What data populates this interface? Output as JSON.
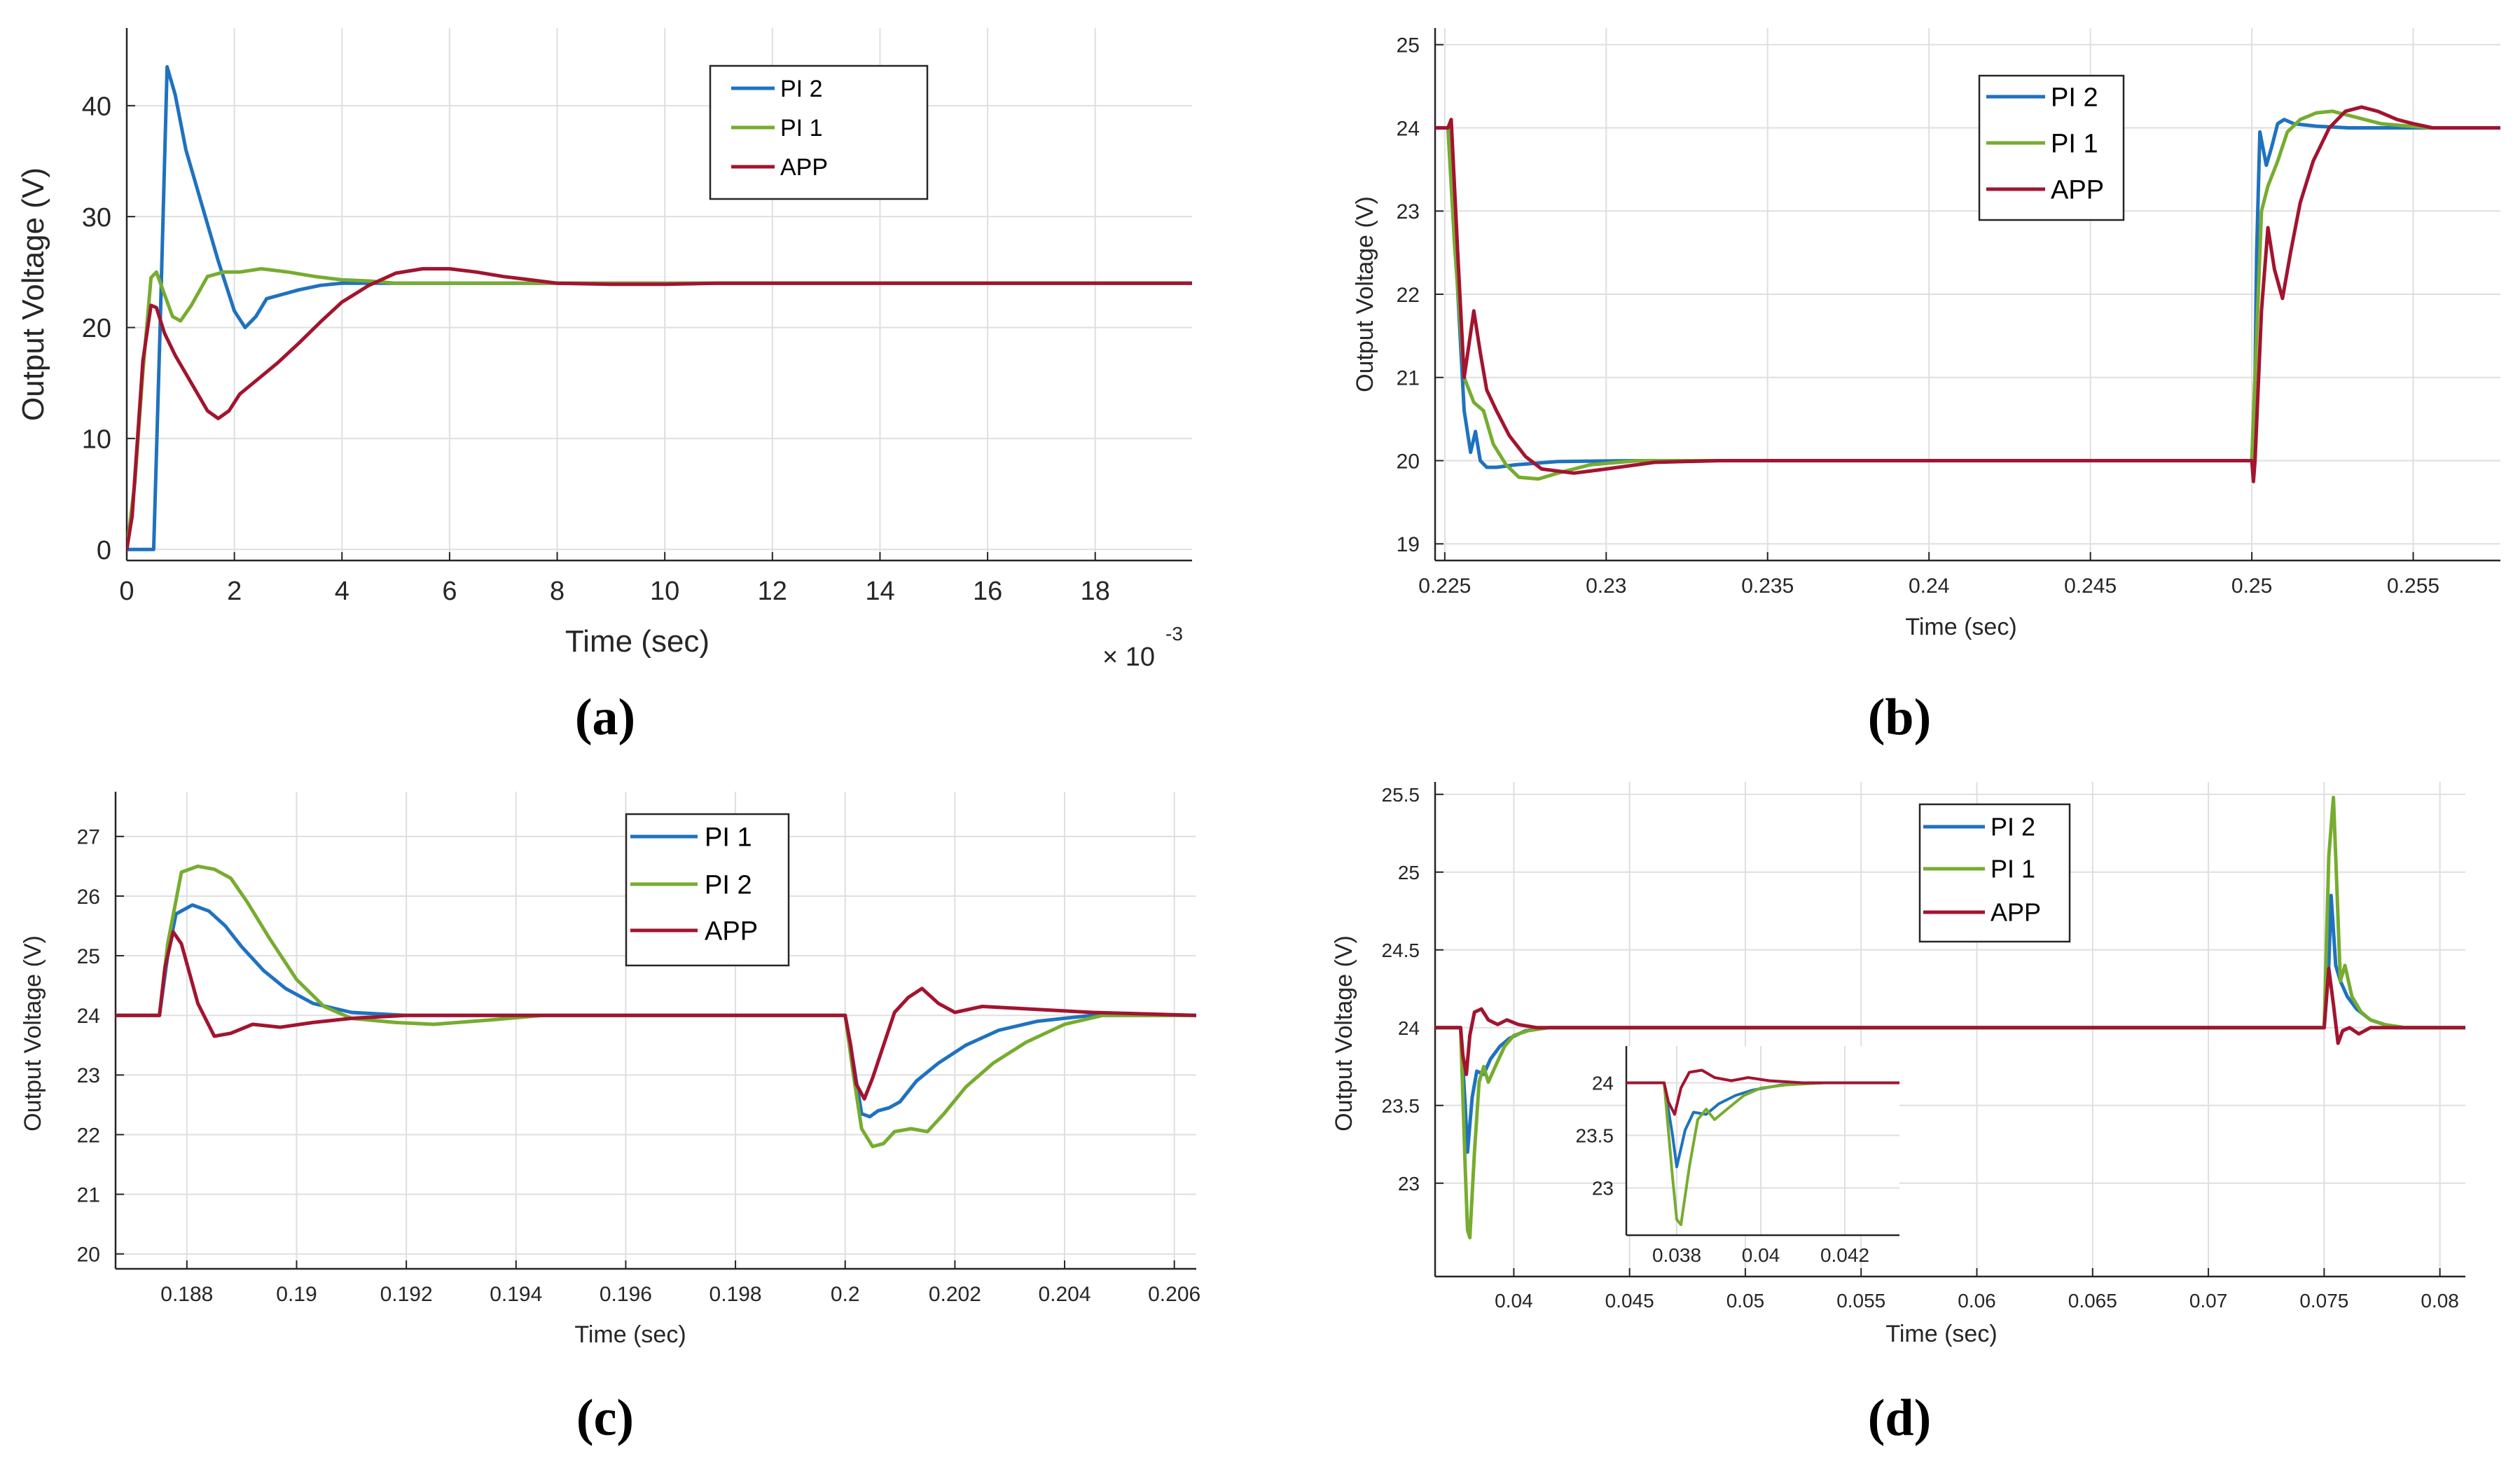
{
  "colors": {
    "blue": "#1f72bf",
    "green": "#77ac30",
    "red": "#a2142f"
  },
  "chart_data": [
    {
      "panel": "(a)",
      "type": "line",
      "title": "",
      "xlabel": "Time (sec)",
      "ylabel": "Output Voltage (V)",
      "xlim": [
        0,
        19.8
      ],
      "ylim": [
        -1,
        47
      ],
      "xticks": [
        0,
        2,
        4,
        6,
        8,
        10,
        12,
        14,
        16,
        18
      ],
      "xtick_labels": [
        "0",
        "2",
        "4",
        "6",
        "8",
        "10",
        "12",
        "14",
        "16",
        "18"
      ],
      "yticks": [
        0,
        10,
        20,
        30,
        40
      ],
      "ytick_labels": [
        "0",
        "10",
        "20",
        "30",
        "40"
      ],
      "x_multiplier_base": "× 10",
      "x_multiplier_exp": "-3",
      "grid": true,
      "legend": "top-center",
      "series": [
        {
          "name": "PI 2",
          "color": "blue",
          "x": [
            0,
            0.4,
            0.5,
            0.62,
            0.75,
            0.9,
            1.1,
            1.4,
            1.7,
            2.0,
            2.2,
            2.4,
            2.6,
            2.9,
            3.2,
            3.6,
            4.0,
            4.5,
            5.5,
            8,
            12,
            19.8
          ],
          "y": [
            0,
            0,
            0,
            20,
            43.5,
            41,
            36,
            31,
            26,
            21.5,
            20,
            21,
            22.6,
            23.0,
            23.4,
            23.8,
            24.0,
            24.0,
            24.0,
            24.0,
            24.0,
            24.0
          ]
        },
        {
          "name": "PI 1",
          "color": "green",
          "x": [
            0,
            0.15,
            0.3,
            0.45,
            0.55,
            0.7,
            0.85,
            1.0,
            1.2,
            1.5,
            1.8,
            2.1,
            2.5,
            3.0,
            3.5,
            4.0,
            4.5,
            5.0,
            6.0,
            8,
            12,
            19.8
          ],
          "y": [
            0,
            6,
            16,
            24.5,
            25.0,
            23.0,
            21.0,
            20.6,
            22.0,
            24.6,
            25.0,
            25.0,
            25.3,
            25.0,
            24.6,
            24.3,
            24.2,
            24.0,
            24.0,
            24.0,
            24.0,
            24.0
          ]
        },
        {
          "name": "APP",
          "color": "red",
          "x": [
            0,
            0.1,
            0.2,
            0.3,
            0.45,
            0.55,
            0.7,
            0.9,
            1.2,
            1.5,
            1.7,
            1.9,
            2.1,
            2.4,
            2.8,
            3.2,
            3.6,
            4.0,
            4.5,
            5.0,
            5.5,
            6.0,
            6.5,
            7.0,
            7.5,
            8.0,
            9.0,
            10.0,
            11.0,
            12.0,
            19.8
          ],
          "y": [
            0,
            3,
            10,
            17,
            22.0,
            21.8,
            19.5,
            17.5,
            15,
            12.5,
            11.8,
            12.5,
            14,
            15.2,
            16.8,
            18.6,
            20.5,
            22.3,
            23.8,
            24.9,
            25.3,
            25.3,
            25.0,
            24.6,
            24.3,
            24.0,
            23.9,
            23.9,
            24.0,
            24.0,
            24.0
          ]
        }
      ]
    },
    {
      "panel": "(b)",
      "type": "line",
      "title": "",
      "xlabel": "Time (sec)",
      "ylabel": "Output Voltage (V)",
      "xlim": [
        0.2247,
        0.2577
      ],
      "ylim": [
        18.8,
        25.2
      ],
      "xticks": [
        0.225,
        0.23,
        0.235,
        0.24,
        0.245,
        0.25,
        0.255
      ],
      "xtick_labels": [
        "0.225",
        "0.23",
        "0.235",
        "0.24",
        "0.245",
        "0.25",
        "0.255"
      ],
      "yticks": [
        19,
        20,
        21,
        22,
        23,
        24,
        25
      ],
      "ytick_labels": [
        "19",
        "20",
        "21",
        "22",
        "23",
        "24",
        "25"
      ],
      "grid": true,
      "legend": "top-center",
      "series": [
        {
          "name": "PI 2",
          "color": "blue",
          "x": [
            0.2247,
            0.2251,
            0.22535,
            0.2256,
            0.2258,
            0.22595,
            0.2261,
            0.2263,
            0.2266,
            0.2272,
            0.2285,
            0.231,
            0.25,
            0.2501,
            0.25015,
            0.25025,
            0.25045,
            0.2506,
            0.2508,
            0.251,
            0.2513,
            0.252,
            0.253,
            0.2577
          ],
          "y": [
            24,
            24,
            22.4,
            20.6,
            20.1,
            20.35,
            20.0,
            19.92,
            19.92,
            19.95,
            19.99,
            20.0,
            20.0,
            21.0,
            22.5,
            23.95,
            23.55,
            23.75,
            24.05,
            24.1,
            24.05,
            24.02,
            24.0,
            24.0
          ]
        },
        {
          "name": "PI 1",
          "color": "green",
          "x": [
            0.2247,
            0.2251,
            0.2253,
            0.2256,
            0.2259,
            0.2262,
            0.2265,
            0.2269,
            0.2273,
            0.2279,
            0.2285,
            0.2295,
            0.231,
            0.2325,
            0.25,
            0.25015,
            0.2503,
            0.2505,
            0.2508,
            0.2511,
            0.2515,
            0.252,
            0.2525,
            0.253,
            0.254,
            0.2555,
            0.2577
          ],
          "y": [
            24,
            24,
            22.6,
            21.0,
            20.7,
            20.6,
            20.2,
            19.95,
            19.8,
            19.78,
            19.85,
            19.95,
            20.0,
            20.0,
            20.0,
            21.5,
            23.0,
            23.3,
            23.6,
            23.95,
            24.1,
            24.18,
            24.2,
            24.15,
            24.05,
            24.0,
            24.0
          ]
        },
        {
          "name": "APP",
          "color": "red",
          "x": [
            0.2247,
            0.2251,
            0.2252,
            0.2254,
            0.2256,
            0.22575,
            0.2259,
            0.2261,
            0.2263,
            0.2266,
            0.227,
            0.2275,
            0.228,
            0.229,
            0.23,
            0.2315,
            0.2335,
            0.25,
            0.25005,
            0.2501,
            0.2503,
            0.2505,
            0.2507,
            0.25095,
            0.2512,
            0.2515,
            0.2519,
            0.2524,
            0.2529,
            0.2534,
            0.2539,
            0.2545,
            0.255,
            0.2556,
            0.2577
          ],
          "y": [
            24,
            24,
            24.1,
            22.5,
            21.0,
            21.4,
            21.8,
            21.3,
            20.85,
            20.6,
            20.3,
            20.05,
            19.9,
            19.85,
            19.9,
            19.98,
            20.0,
            20.0,
            19.75,
            20.0,
            21.8,
            22.8,
            22.3,
            21.95,
            22.5,
            23.1,
            23.6,
            24.0,
            24.2,
            24.25,
            24.2,
            24.1,
            24.05,
            24.0,
            24.0
          ]
        }
      ]
    },
    {
      "panel": "(c)",
      "type": "line",
      "title": "",
      "xlabel": "Time (sec)",
      "ylabel": "Output Voltage (V)",
      "xlim": [
        0.1867,
        0.2064
      ],
      "ylim": [
        19.75,
        27.75
      ],
      "xticks": [
        0.188,
        0.19,
        0.192,
        0.194,
        0.196,
        0.198,
        0.2,
        0.202,
        0.204,
        0.206
      ],
      "xtick_labels": [
        "0.188",
        "0.19",
        "0.192",
        "0.194",
        "0.196",
        "0.198",
        "0.2",
        "0.202",
        "0.204",
        "0.206"
      ],
      "yticks": [
        20,
        21,
        22,
        23,
        24,
        25,
        26,
        27
      ],
      "ytick_labels": [
        "20",
        "21",
        "22",
        "23",
        "24",
        "25",
        "26",
        "27"
      ],
      "grid": true,
      "legend": "top-center",
      "series": [
        {
          "name": "PI 1",
          "color": "blue",
          "x": [
            0.1867,
            0.1875,
            0.18765,
            0.1878,
            0.1881,
            0.1884,
            0.1887,
            0.189,
            0.1894,
            0.1898,
            0.1903,
            0.191,
            0.192,
            0.2,
            0.20015,
            0.2003,
            0.20045,
            0.2006,
            0.2008,
            0.201,
            0.2013,
            0.2017,
            0.2022,
            0.2028,
            0.2035,
            0.2045,
            0.2064
          ],
          "y": [
            24,
            24,
            25.0,
            25.7,
            25.85,
            25.75,
            25.5,
            25.15,
            24.75,
            24.45,
            24.2,
            24.05,
            24.0,
            24.0,
            23.2,
            22.35,
            22.3,
            22.4,
            22.45,
            22.55,
            22.9,
            23.2,
            23.5,
            23.75,
            23.9,
            24.0,
            24.0
          ]
        },
        {
          "name": "PI 2",
          "color": "green",
          "x": [
            0.1867,
            0.1875,
            0.18765,
            0.1879,
            0.1882,
            0.1885,
            0.1888,
            0.1891,
            0.1895,
            0.19,
            0.1905,
            0.191,
            0.1918,
            0.1925,
            0.1935,
            0.1945,
            0.2,
            0.20015,
            0.2003,
            0.2005,
            0.2007,
            0.2009,
            0.2012,
            0.2015,
            0.2018,
            0.2022,
            0.2027,
            0.2033,
            0.204,
            0.2047,
            0.2064
          ],
          "y": [
            24,
            24,
            25.2,
            26.4,
            26.5,
            26.45,
            26.3,
            25.9,
            25.3,
            24.6,
            24.15,
            23.95,
            23.88,
            23.85,
            23.92,
            24.0,
            24.0,
            23.0,
            22.1,
            21.8,
            21.85,
            22.05,
            22.1,
            22.05,
            22.35,
            22.8,
            23.2,
            23.55,
            23.85,
            24.0,
            24.0
          ]
        },
        {
          "name": "APP",
          "color": "red",
          "x": [
            0.1867,
            0.1875,
            0.1876,
            0.18775,
            0.1879,
            0.1882,
            0.1885,
            0.1888,
            0.1892,
            0.1897,
            0.1903,
            0.191,
            0.192,
            0.1935,
            0.2,
            0.2001,
            0.2002,
            0.20035,
            0.2005,
            0.2007,
            0.2009,
            0.20115,
            0.2014,
            0.2017,
            0.202,
            0.2025,
            0.2035,
            0.2045,
            0.2064
          ],
          "y": [
            24,
            24,
            24.8,
            25.4,
            25.2,
            24.2,
            23.65,
            23.7,
            23.85,
            23.8,
            23.88,
            23.95,
            24.0,
            24.0,
            24.0,
            23.5,
            22.85,
            22.6,
            22.95,
            23.5,
            24.05,
            24.3,
            24.45,
            24.2,
            24.05,
            24.15,
            24.1,
            24.05,
            24.0
          ]
        }
      ]
    },
    {
      "panel": "(d)",
      "type": "line",
      "title": "",
      "xlabel": "Time (sec)",
      "ylabel": "Output Voltage (V)",
      "xlim": [
        0.0366,
        0.0811
      ],
      "ylim": [
        22.4,
        25.58
      ],
      "xticks": [
        0.04,
        0.045,
        0.05,
        0.055,
        0.06,
        0.065,
        0.07,
        0.075,
        0.08
      ],
      "xtick_labels": [
        "0.04",
        "0.045",
        "0.05",
        "0.055",
        "0.06",
        "0.065",
        "0.07",
        "0.075",
        "0.08"
      ],
      "yticks": [
        23,
        23.5,
        24,
        24.5,
        25,
        25.5
      ],
      "ytick_labels": [
        "23",
        "23.5",
        "24",
        "24.5",
        "25",
        "25.5"
      ],
      "grid": true,
      "legend": "top-center",
      "series": [
        {
          "name": "PI 2",
          "color": "blue",
          "x": [
            0.0366,
            0.0377,
            0.0379,
            0.038,
            0.0382,
            0.0384,
            0.0387,
            0.039,
            0.0394,
            0.0398,
            0.0405,
            0.0415,
            0.0425,
            0.075,
            0.0752,
            0.0753,
            0.0755,
            0.0757,
            0.076,
            0.0764,
            0.077,
            0.078,
            0.0811
          ],
          "y": [
            24,
            24,
            23.5,
            23.2,
            23.55,
            23.72,
            23.7,
            23.8,
            23.88,
            23.93,
            23.98,
            24.0,
            24.0,
            24.0,
            24.4,
            24.85,
            24.4,
            24.3,
            24.2,
            24.12,
            24.05,
            24.0,
            24.0
          ]
        },
        {
          "name": "PI 1",
          "color": "green",
          "x": [
            0.0366,
            0.0377,
            0.0379,
            0.038,
            0.0381,
            0.0383,
            0.0385,
            0.0387,
            0.0389,
            0.0392,
            0.0396,
            0.04,
            0.0406,
            0.0415,
            0.0425,
            0.075,
            0.0752,
            0.0754,
            0.0755,
            0.0757,
            0.0759,
            0.0762,
            0.0766,
            0.077,
            0.0776,
            0.0785,
            0.0811
          ],
          "y": [
            24,
            24,
            23.1,
            22.7,
            22.65,
            23.2,
            23.65,
            23.75,
            23.65,
            23.75,
            23.88,
            23.95,
            23.98,
            24.0,
            24.0,
            24.0,
            25.1,
            25.48,
            25.1,
            24.3,
            24.4,
            24.2,
            24.1,
            24.05,
            24.02,
            24.0,
            24.0
          ]
        },
        {
          "name": "APP",
          "color": "red",
          "x": [
            0.0366,
            0.0377,
            0.0378,
            0.03795,
            0.0381,
            0.0383,
            0.0386,
            0.0389,
            0.0393,
            0.0397,
            0.0402,
            0.041,
            0.0425,
            0.075,
            0.0752,
            0.0754,
            0.0756,
            0.0758,
            0.0761,
            0.0765,
            0.077,
            0.0811
          ],
          "y": [
            24,
            24,
            23.82,
            23.7,
            23.95,
            24.1,
            24.12,
            24.05,
            24.02,
            24.05,
            24.02,
            24.0,
            24.0,
            24.0,
            24.38,
            24.15,
            23.9,
            23.98,
            24.0,
            23.96,
            24.0,
            24.0
          ]
        }
      ],
      "inset": {
        "xlim": [
          0.0368,
          0.0433
        ],
        "ylim": [
          22.55,
          24.35
        ],
        "xticks": [
          0.038,
          0.04,
          0.042
        ],
        "xtick_labels": [
          "0.038",
          "0.04",
          "0.042"
        ],
        "yticks": [
          23,
          23.5,
          24
        ],
        "ytick_labels": [
          "23",
          "23.5",
          "24"
        ],
        "series_source": "same as panel (d)"
      }
    }
  ],
  "panels": {
    "a": {
      "label": "(a)",
      "legend": [
        "PI 2",
        "PI 1",
        "APP"
      ]
    },
    "b": {
      "label": "(b)",
      "legend": [
        "PI 2",
        "PI 1",
        "APP"
      ]
    },
    "c": {
      "label": "(c)",
      "legend": [
        "PI 1",
        "PI 2",
        "APP"
      ]
    },
    "d": {
      "label": "(d)",
      "legend": [
        "PI 2",
        "PI 1",
        "APP"
      ]
    }
  }
}
